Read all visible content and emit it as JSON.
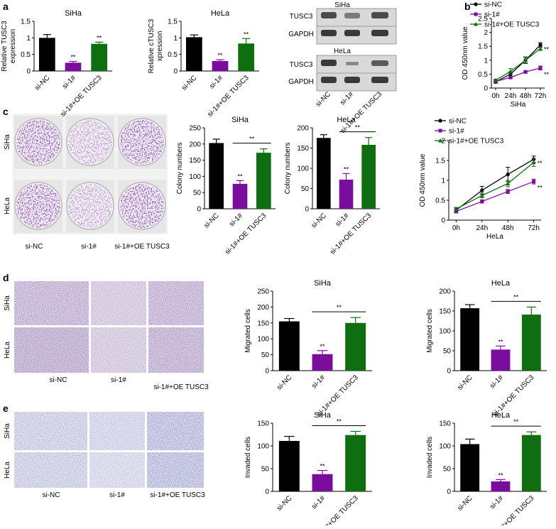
{
  "panel_letters": [
    "a",
    "b",
    "c",
    "d",
    "e"
  ],
  "conditions": [
    "si-NC",
    "si-1#",
    "si-1#+OE TUSC3"
  ],
  "image_labels": {
    "cell_lines": [
      "SiHa",
      "HeLa"
    ]
  },
  "western_blot": {
    "siha_title": "SiHa",
    "hela_title": "HeLa",
    "band_labels": [
      "TUSC3",
      "GAPDH"
    ],
    "lane_labels": [
      "si-NC",
      "si-1#",
      "si-1#+OE TUSC3"
    ]
  },
  "colors": {
    "si-NC": "#000000",
    "si-1#": "#7b0d9e",
    "si-1#+OE TUSC3": "#0f6e0f"
  },
  "chart_data": [
    {
      "id": "a_siha",
      "type": "bar",
      "title": "SiHa",
      "ylabel": "Relative TUSC3 expression",
      "ylabel_lines": [
        "Relative TUSC3",
        "expression"
      ],
      "categories": [
        "si-NC",
        "si-1#",
        "si-1#+OE TUSC3"
      ],
      "values": [
        1.0,
        0.25,
        0.82
      ],
      "errors": [
        0.1,
        0.04,
        0.05
      ],
      "ylim": [
        0,
        1.5
      ],
      "yticks": [
        0.0,
        0.5,
        1.0,
        1.5
      ],
      "annotations": [
        "",
        "**",
        "**"
      ],
      "brackets": []
    },
    {
      "id": "a_hela",
      "type": "bar",
      "title": "HeLa",
      "ylabel": "Relative cTUSC3 xpression",
      "ylabel_lines": [
        "Relative cTUSC3",
        "xpression"
      ],
      "categories": [
        "si-NC",
        "si-1#",
        "si-1#+OE TUSC3"
      ],
      "values": [
        1.02,
        0.3,
        0.83
      ],
      "errors": [
        0.07,
        0.04,
        0.15
      ],
      "ylim": [
        0,
        1.5
      ],
      "yticks": [
        0.0,
        0.5,
        1.0,
        1.5
      ],
      "annotations": [
        "",
        "**",
        "**"
      ],
      "brackets": []
    },
    {
      "id": "b_siha",
      "type": "line",
      "xlabel": "SiHa",
      "ylabel": "OD 450nm value",
      "categories": [
        "0h",
        "24h",
        "48h",
        "72h"
      ],
      "ylim": [
        0,
        2.5
      ],
      "yticks": [
        0.0,
        0.5,
        1.0,
        1.5,
        2.0,
        2.5
      ],
      "series": [
        {
          "name": "si-NC",
          "values": [
            0.22,
            0.5,
            1.0,
            1.55
          ],
          "errors": [
            0.04,
            0.08,
            0.1,
            0.08
          ]
        },
        {
          "name": "si-1#",
          "values": [
            0.24,
            0.38,
            0.58,
            0.72
          ],
          "errors": [
            0.03,
            0.04,
            0.04,
            0.07
          ]
        },
        {
          "name": "si-1#+OE TUSC3",
          "values": [
            0.28,
            0.6,
            1.0,
            1.42
          ],
          "errors": [
            0.04,
            0.1,
            0.12,
            0.07
          ]
        }
      ],
      "end_annotations": [
        "**",
        "**"
      ]
    },
    {
      "id": "c_siha",
      "type": "bar",
      "title": "SiHa",
      "ylabel": "Colony numbers",
      "categories": [
        "si-NC",
        "si-1#",
        "si-1#+OE TUSC3"
      ],
      "values": [
        203,
        77,
        173
      ],
      "errors": [
        12,
        10,
        12
      ],
      "ylim": [
        0,
        250
      ],
      "yticks": [
        0,
        50,
        100,
        150,
        200,
        250
      ],
      "annotations": [
        "",
        "**",
        ""
      ],
      "brackets": [
        {
          "from": 1,
          "to": 2,
          "label": "**"
        }
      ]
    },
    {
      "id": "c_hela",
      "type": "bar",
      "title": "HeLa",
      "ylabel": "Colony numbers",
      "categories": [
        "si-NC",
        "si-1#",
        "si-1#+OE TUSC3"
      ],
      "values": [
        175,
        72,
        158
      ],
      "errors": [
        8,
        15,
        18
      ],
      "ylim": [
        0,
        200
      ],
      "yticks": [
        0,
        50,
        100,
        150,
        200
      ],
      "annotations": [
        "",
        "**",
        ""
      ],
      "brackets": [
        {
          "from": 1,
          "to": 2,
          "label": "**"
        }
      ]
    },
    {
      "id": "b_hela",
      "type": "line",
      "xlabel": "HeLa",
      "ylabel": "OD 450nm value",
      "categories": [
        "0h",
        "24h",
        "48h",
        "72h"
      ],
      "ylim": [
        0,
        2.0
      ],
      "yticks": [
        0.0,
        0.5,
        1.0,
        1.5,
        2.0
      ],
      "series": [
        {
          "name": "si-NC",
          "values": [
            0.25,
            0.75,
            1.15,
            1.53
          ],
          "errors": [
            0.05,
            0.1,
            0.18,
            0.08
          ]
        },
        {
          "name": "si-1#",
          "values": [
            0.22,
            0.47,
            0.72,
            0.97
          ],
          "errors": [
            0.04,
            0.04,
            0.05,
            0.06
          ]
        },
        {
          "name": "si-1#+OE TUSC3",
          "values": [
            0.28,
            0.62,
            0.92,
            1.45
          ],
          "errors": [
            0.04,
            0.06,
            0.08,
            0.1
          ]
        }
      ],
      "end_annotations": [
        "**",
        "**"
      ]
    },
    {
      "id": "d_siha",
      "type": "bar",
      "title": "SiHa",
      "ylabel": "Migrated cells",
      "categories": [
        "si-NC",
        "si-1#",
        "si-1#+OE TUSC3"
      ],
      "values": [
        155,
        52,
        150
      ],
      "errors": [
        9,
        11,
        17
      ],
      "ylim": [
        0,
        250
      ],
      "yticks": [
        0,
        50,
        100,
        150,
        200,
        250
      ],
      "annotations": [
        "",
        "**",
        ""
      ],
      "brackets": [
        {
          "from": 1,
          "to": 2,
          "label": "**"
        }
      ]
    },
    {
      "id": "d_hela",
      "type": "bar",
      "title": "HeLa",
      "ylabel": "Migrated cells",
      "categories": [
        "si-NC",
        "si-1#",
        "si-1#+OE TUSC3"
      ],
      "values": [
        157,
        53,
        141
      ],
      "errors": [
        9,
        9,
        19
      ],
      "ylim": [
        0,
        200
      ],
      "yticks": [
        0,
        50,
        100,
        150,
        200
      ],
      "annotations": [
        "",
        "**",
        ""
      ],
      "brackets": [
        {
          "from": 1,
          "to": 2,
          "label": "**"
        }
      ]
    },
    {
      "id": "e_siha",
      "type": "bar",
      "title": "SiHa",
      "ylabel": "Invaded cells",
      "categories": [
        "si-NC",
        "si-1#",
        "si-1#+OE TUSC3"
      ],
      "values": [
        111,
        38,
        124
      ],
      "errors": [
        10,
        8,
        8
      ],
      "ylim": [
        0,
        150
      ],
      "yticks": [
        0,
        50,
        100,
        150
      ],
      "annotations": [
        "",
        "**",
        ""
      ],
      "brackets": [
        {
          "from": 1,
          "to": 2,
          "label": "**"
        }
      ]
    },
    {
      "id": "e_hela",
      "type": "bar",
      "title": "HeLa",
      "ylabel": "Invaded cells",
      "categories": [
        "si-NC",
        "si-1#",
        "si-1#+OE TUSC3"
      ],
      "values": [
        104,
        22,
        124
      ],
      "errors": [
        11,
        4,
        7
      ],
      "ylim": [
        0,
        150
      ],
      "yticks": [
        0,
        50,
        100,
        150
      ],
      "annotations": [
        "",
        "**",
        ""
      ],
      "brackets": [
        {
          "from": 1,
          "to": 2,
          "label": "**"
        }
      ]
    }
  ]
}
